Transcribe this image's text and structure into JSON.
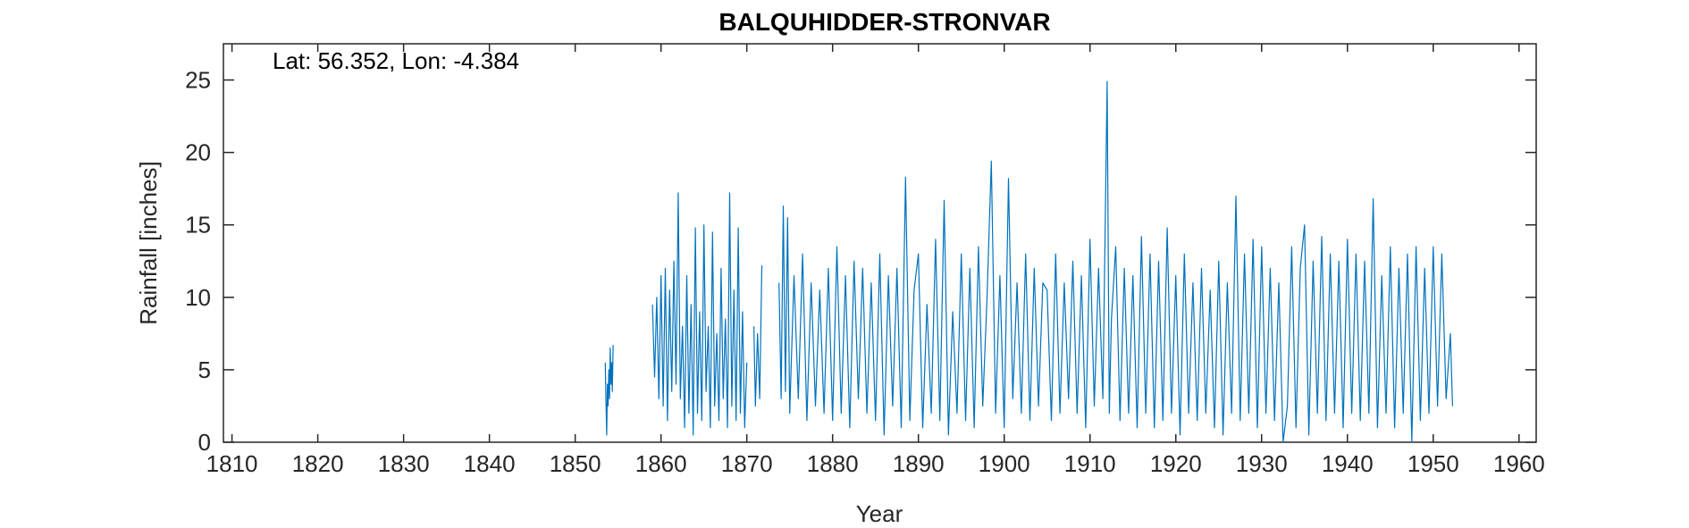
{
  "chart_data": {
    "type": "line",
    "title": "BALQUHIDDER-STRONVAR",
    "annotation": "Lat: 56.352, Lon: -4.384",
    "xlabel": "Year",
    "ylabel": "Rainfall [inches]",
    "xlim": [
      1809,
      1962
    ],
    "ylim": [
      0,
      27.5
    ],
    "xticks": [
      1810,
      1820,
      1830,
      1840,
      1850,
      1860,
      1870,
      1880,
      1890,
      1900,
      1910,
      1920,
      1930,
      1940,
      1950,
      1960
    ],
    "yticks": [
      0,
      5,
      10,
      15,
      20,
      25
    ],
    "grid": false,
    "series": [
      {
        "color": "#0072BD",
        "x": [
          1853.5,
          1853.58,
          1853.67,
          1853.75,
          1853.83,
          1853.92,
          1854.0,
          1854.08,
          1854.17,
          1854.25,
          1854.33,
          1854.42,
          1859.0,
          1859.25,
          1859.5,
          1859.75,
          1860.0,
          1860.25,
          1860.5,
          1860.75,
          1861.0,
          1861.25,
          1861.5,
          1861.75,
          1862.0,
          1862.25,
          1862.5,
          1862.75,
          1863.0,
          1863.25,
          1863.5,
          1863.75,
          1864.0,
          1864.25,
          1864.5,
          1864.75,
          1865.0,
          1865.25,
          1865.5,
          1865.75,
          1866.0,
          1866.25,
          1866.5,
          1866.75,
          1867.0,
          1867.25,
          1867.5,
          1867.75,
          1868.0,
          1868.25,
          1868.5,
          1868.75,
          1869.0,
          1869.25,
          1869.5,
          1869.75,
          1870.0,
          1870.83,
          1871.0,
          1871.25,
          1871.5,
          1871.75,
          1873.75,
          1874.0,
          1874.25,
          1874.5,
          1874.75,
          1875.0,
          1875.5,
          1876.0,
          1876.5,
          1877.0,
          1877.5,
          1878.0,
          1878.5,
          1879.0,
          1879.5,
          1880.0,
          1880.5,
          1881.0,
          1881.5,
          1882.0,
          1882.5,
          1883.0,
          1883.5,
          1884.0,
          1884.5,
          1885.0,
          1885.5,
          1886.0,
          1886.5,
          1887.0,
          1887.5,
          1888.0,
          1888.5,
          1889.0,
          1889.5,
          1890.0,
          1890.5,
          1891.0,
          1891.5,
          1892.0,
          1892.5,
          1893.0,
          1893.5,
          1894.0,
          1894.5,
          1895.0,
          1895.5,
          1896.0,
          1896.5,
          1897.0,
          1897.5,
          1898.0,
          1898.5,
          1899.0,
          1899.5,
          1900.0,
          1900.5,
          1901.0,
          1901.5,
          1902.0,
          1902.5,
          1903.0,
          1903.5,
          1904.0,
          1904.5,
          1905.0,
          1905.5,
          1906.0,
          1906.5,
          1907.0,
          1907.5,
          1908.0,
          1908.5,
          1909.0,
          1909.5,
          1910.0,
          1910.5,
          1911.0,
          1911.5,
          1912.0,
          1912.25,
          1912.5,
          1913.0,
          1913.5,
          1914.0,
          1914.5,
          1915.0,
          1915.5,
          1916.0,
          1916.5,
          1917.0,
          1917.5,
          1918.0,
          1918.5,
          1919.0,
          1919.5,
          1920.0,
          1920.5,
          1921.0,
          1921.5,
          1922.0,
          1922.5,
          1923.0,
          1923.5,
          1924.0,
          1924.5,
          1925.0,
          1925.5,
          1926.0,
          1926.5,
          1927.0,
          1927.5,
          1928.0,
          1928.5,
          1929.0,
          1929.5,
          1930.0,
          1930.5,
          1931.0,
          1931.5,
          1932.0,
          1932.5,
          1933.0,
          1933.5,
          1934.0,
          1934.5,
          1935.0,
          1935.5,
          1936.0,
          1936.5,
          1937.0,
          1937.5,
          1938.0,
          1938.5,
          1939.0,
          1939.5,
          1940.0,
          1940.5,
          1941.0,
          1941.5,
          1942.0,
          1942.5,
          1943.0,
          1943.5,
          1944.0,
          1944.5,
          1945.0,
          1945.5,
          1946.0,
          1946.5,
          1947.0,
          1947.5,
          1948.0,
          1948.5,
          1949.0,
          1949.5,
          1950.0,
          1950.5,
          1951.0,
          1951.5,
          1952.0,
          1952.25
        ],
        "y": [
          5.5,
          3.0,
          0.5,
          4.0,
          2.5,
          5.0,
          3.0,
          6.5,
          4.0,
          5.5,
          3.5,
          6.7,
          9.5,
          4.5,
          10.0,
          3.0,
          11.5,
          2.5,
          12.0,
          1.5,
          10.5,
          3.5,
          12.5,
          4.0,
          17.2,
          3.0,
          8.0,
          1.0,
          11.5,
          2.0,
          9.5,
          0.5,
          14.8,
          2.0,
          9.0,
          1.5,
          15.0,
          3.5,
          8.0,
          1.0,
          14.5,
          2.5,
          7.5,
          1.5,
          12.0,
          3.0,
          8.5,
          1.0,
          17.2,
          2.5,
          10.5,
          1.5,
          14.8,
          2.0,
          9.0,
          1.0,
          5.5,
          8.0,
          2.5,
          7.5,
          3.0,
          12.2,
          11.0,
          3.0,
          16.3,
          3.5,
          15.5,
          2.0,
          11.5,
          3.0,
          13.0,
          1.5,
          11.0,
          2.5,
          10.5,
          2.0,
          12.0,
          1.5,
          13.5,
          2.0,
          11.5,
          1.0,
          12.5,
          3.0,
          12.0,
          2.0,
          11.0,
          1.5,
          13.0,
          0.5,
          11.5,
          2.5,
          12.0,
          1.0,
          18.3,
          1.5,
          10.5,
          13.0,
          1.0,
          9.5,
          2.0,
          14.0,
          1.5,
          16.7,
          0.5,
          9.0,
          2.0,
          13.0,
          1.5,
          12.0,
          1.0,
          13.5,
          2.5,
          10.0,
          19.4,
          2.0,
          11.5,
          1.0,
          18.2,
          3.0,
          11.0,
          2.0,
          13.0,
          1.5,
          12.0,
          2.5,
          11.0,
          10.5,
          1.5,
          13.0,
          2.0,
          11.0,
          3.0,
          12.5,
          2.0,
          11.5,
          1.0,
          14.0,
          2.5,
          12.0,
          3.0,
          24.9,
          2.0,
          8.5,
          13.5,
          1.5,
          12.0,
          2.0,
          11.5,
          1.0,
          14.2,
          2.0,
          13.0,
          1.0,
          12.5,
          1.5,
          14.8,
          2.0,
          11.5,
          0.5,
          13.0,
          2.0,
          11.0,
          1.5,
          12.0,
          2.0,
          10.5,
          1.0,
          12.5,
          0.5,
          11.0,
          2.0,
          17.0,
          1.5,
          13.0,
          2.0,
          14.0,
          1.0,
          13.5,
          2.0,
          12.0,
          1.5,
          11.0,
          0.0,
          2.5,
          13.5,
          1.0,
          12.0,
          15.0,
          0.5,
          12.5,
          2.0,
          14.2,
          1.5,
          13.0,
          2.0,
          12.5,
          1.0,
          14.0,
          2.0,
          13.0,
          1.5,
          12.5,
          2.0,
          16.8,
          1.0,
          11.5,
          2.0,
          13.5,
          1.0,
          12.0,
          2.0,
          13.0,
          0.0,
          13.5,
          1.5,
          12.0,
          2.0,
          13.5,
          2.5,
          13.0,
          3.0,
          7.5,
          2.5
        ]
      }
    ]
  }
}
